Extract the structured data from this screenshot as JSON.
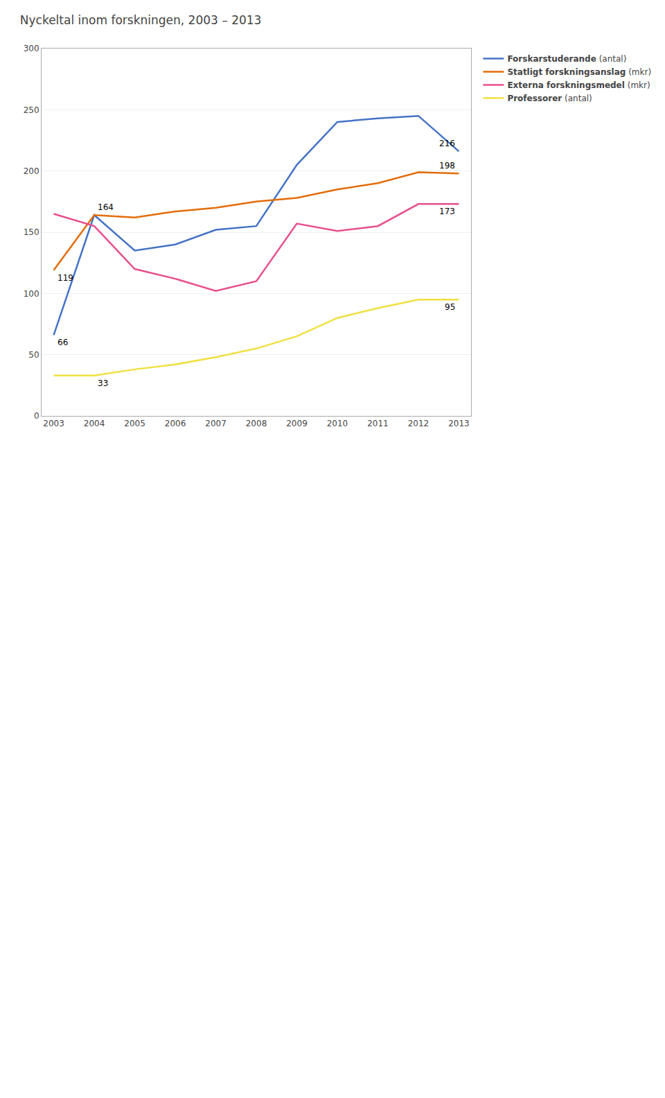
{
  "chart_data": {
    "type": "line",
    "title": "Nyckeltal inom forskningen, 2003 – 2013",
    "x": [
      2003,
      2004,
      2005,
      2006,
      2007,
      2008,
      2009,
      2010,
      2011,
      2012,
      2013
    ],
    "series": [
      {
        "name": "Forskarstuderande (antal)",
        "color": "#4472C4",
        "values": [
          66,
          164,
          135,
          140,
          152,
          155,
          205,
          240,
          243,
          245,
          216
        ]
      },
      {
        "name": "Statligt forskningsanslag (mkr)",
        "color": "#E36C09",
        "values": [
          119,
          164,
          162,
          167,
          170,
          175,
          178,
          185,
          190,
          199,
          198
        ]
      },
      {
        "name": "Externa forskningsmedel (mkr)",
        "color": "#E84F8C",
        "values": [
          165,
          155,
          120,
          112,
          102,
          110,
          157,
          151,
          155,
          173,
          173
        ]
      },
      {
        "name": "Professorer (antal)",
        "color": "#F0E040",
        "values": [
          33,
          33,
          38,
          42,
          48,
          55,
          65,
          80,
          88,
          95,
          95
        ]
      }
    ],
    "annotations": [
      {
        "text": "66",
        "x": 2003,
        "y": 66
      },
      {
        "text": "164",
        "x": 2004,
        "y": 164
      },
      {
        "text": "216",
        "x": 2013,
        "y": 216
      },
      {
        "text": "119",
        "x": 2003,
        "y": 119
      },
      {
        "text": "198",
        "x": 2013,
        "y": 198
      },
      {
        "text": "173",
        "x": 2013,
        "y": 173
      },
      {
        "text": "33",
        "x": 2004,
        "y": 33
      },
      {
        "text": "95",
        "x": 2013,
        "y": 95
      }
    ],
    "xlim": [
      2002.7,
      2013.3
    ],
    "xticks": [
      2003,
      2004,
      2005,
      2006,
      2007,
      2008,
      2009,
      2010,
      2011,
      2012,
      2013
    ],
    "ylim": [
      0,
      300
    ],
    "yticks": [
      0,
      50,
      100,
      150,
      200,
      250,
      300
    ],
    "grid": true,
    "legend": "right"
  }
}
